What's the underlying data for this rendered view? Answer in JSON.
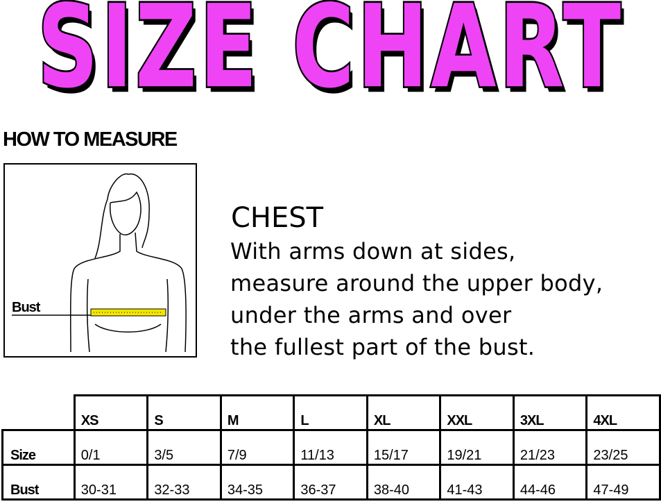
{
  "title": "SIZE CHART",
  "title_color": "#ee44f5",
  "how_to_measure": "HOW TO MEASURE",
  "illustration": {
    "label": "Bust",
    "tape_color": "#f2e600"
  },
  "chest": {
    "heading": "CHEST",
    "lines": [
      "With arms down at sides,",
      "measure around the upper body,",
      "under the arms and over",
      "the fullest part of the bust."
    ]
  },
  "table": {
    "headers": [
      "XS",
      "S",
      "M",
      "L",
      "XL",
      "XXL",
      "3XL",
      "4XL"
    ],
    "rows": [
      {
        "label": "Size",
        "values": [
          "0/1",
          "3/5",
          "7/9",
          "11/13",
          "15/17",
          "19/21",
          "21/23",
          "23/25"
        ]
      },
      {
        "label": "Bust",
        "values": [
          "30-31",
          "32-33",
          "34-35",
          "36-37",
          "38-40",
          "41-43",
          "44-46",
          "47-49"
        ]
      }
    ]
  }
}
